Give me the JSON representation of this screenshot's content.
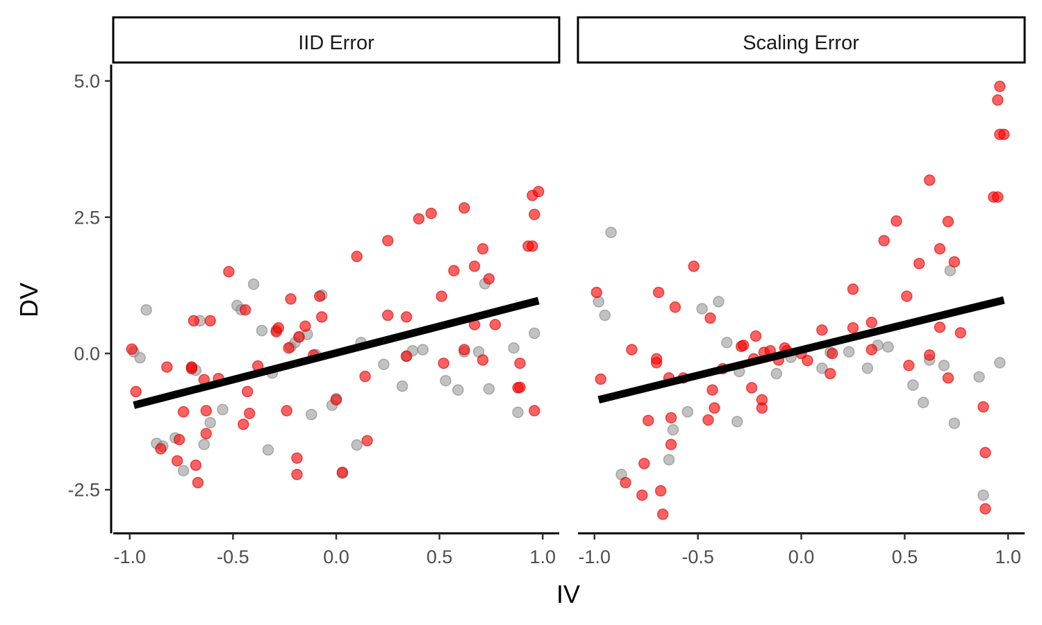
{
  "chart_data": {
    "type": "scatter",
    "xlabel": "IV",
    "ylabel": "DV",
    "xlim": [
      -1.08,
      1.08
    ],
    "ylim": [
      -3.3,
      5.3
    ],
    "x_ticks": [
      "-1.0",
      "-0.5",
      "0.0",
      "0.5",
      "1.0"
    ],
    "y_ticks": [
      "5.0",
      "2.5",
      "0.0",
      "-2.5"
    ],
    "grid": false,
    "legend": "none",
    "colors": {
      "gray": "#999999",
      "red": "#ff0000",
      "line": "#000000"
    },
    "panels": [
      {
        "name": "IID Error",
        "fit_line": {
          "x": [
            -0.98,
            0.98
          ],
          "y": [
            -0.95,
            0.97
          ]
        },
        "gray_points": {
          "x": [
            -0.98,
            -0.95,
            -0.92,
            -0.87,
            -0.84,
            -0.78,
            -0.74,
            -0.7,
            -0.68,
            -0.66,
            -0.64,
            -0.61,
            -0.55,
            -0.48,
            -0.46,
            -0.4,
            -0.36,
            -0.33,
            -0.31,
            -0.29,
            -0.22,
            -0.2,
            -0.18,
            -0.14,
            -0.12,
            -0.1,
            -0.07,
            -0.02,
            0.0,
            0.03,
            0.1,
            0.12,
            0.23,
            0.32,
            0.34,
            0.37,
            0.42,
            0.53,
            0.59,
            0.62,
            0.69,
            0.72,
            0.74,
            0.86,
            0.88,
            0.96
          ],
          "y": [
            0.03,
            -0.08,
            0.8,
            -1.65,
            -1.7,
            -1.55,
            -2.15,
            -0.25,
            -0.31,
            0.6,
            -1.67,
            -1.27,
            -1.03,
            0.88,
            0.8,
            1.27,
            0.42,
            -1.77,
            -0.36,
            0.43,
            0.12,
            0.2,
            0.31,
            0.35,
            -1.12,
            -0.02,
            1.07,
            -0.95,
            -0.83,
            -2.2,
            -1.68,
            0.2,
            -0.2,
            -0.6,
            -0.05,
            0.05,
            0.07,
            -0.5,
            -0.67,
            0.03,
            0.03,
            1.28,
            -0.65,
            0.1,
            -1.08,
            0.37
          ]
        },
        "red_points": {
          "x": [
            -0.99,
            -0.97,
            -0.85,
            -0.82,
            -0.77,
            -0.76,
            -0.74,
            -0.7,
            -0.7,
            -0.69,
            -0.68,
            -0.67,
            -0.64,
            -0.63,
            -0.63,
            -0.61,
            -0.57,
            -0.52,
            -0.45,
            -0.44,
            -0.43,
            -0.42,
            -0.38,
            -0.29,
            -0.28,
            -0.24,
            -0.23,
            -0.22,
            -0.19,
            -0.19,
            -0.18,
            -0.15,
            -0.11,
            -0.08,
            -0.07,
            0.0,
            0.03,
            0.1,
            0.14,
            0.15,
            0.25,
            0.25,
            0.34,
            0.34,
            0.4,
            0.46,
            0.51,
            0.52,
            0.57,
            0.62,
            0.62,
            0.67,
            0.67,
            0.71,
            0.71,
            0.74,
            0.77,
            0.88,
            0.89,
            0.89,
            0.93,
            0.95,
            0.95,
            0.96,
            0.96,
            0.98
          ],
          "y": [
            0.08,
            -0.7,
            -1.75,
            -0.25,
            -1.97,
            -1.58,
            -1.07,
            -0.28,
            -0.25,
            0.6,
            -2.05,
            -2.37,
            -0.48,
            -1.05,
            -1.47,
            0.6,
            -0.46,
            1.5,
            -1.3,
            0.8,
            -0.7,
            -1.1,
            -0.23,
            0.4,
            0.47,
            -1.05,
            0.1,
            1.0,
            -1.92,
            -2.22,
            0.3,
            0.5,
            -0.03,
            1.05,
            0.67,
            -0.85,
            -2.18,
            1.78,
            -0.42,
            -1.6,
            0.7,
            2.07,
            0.67,
            -0.05,
            2.47,
            2.57,
            1.05,
            -0.18,
            1.52,
            2.67,
            0.07,
            1.6,
            0.53,
            1.92,
            -0.12,
            1.37,
            0.53,
            -0.63,
            -0.18,
            -0.62,
            1.97,
            1.97,
            2.9,
            -1.05,
            2.55,
            2.97
          ]
        }
      },
      {
        "name": "Scaling Error",
        "fit_line": {
          "x": [
            -0.98,
            0.98
          ],
          "y": [
            -0.85,
            0.98
          ]
        },
        "gray_points": {
          "x": [
            -0.98,
            -0.95,
            -0.92,
            -0.87,
            -0.64,
            -0.62,
            -0.55,
            -0.48,
            -0.4,
            -0.36,
            -0.31,
            -0.3,
            -0.12,
            -0.05,
            0.1,
            0.14,
            0.23,
            0.32,
            0.37,
            0.42,
            0.54,
            0.59,
            0.62,
            0.69,
            0.72,
            0.74,
            0.86,
            0.88,
            0.96
          ],
          "y": [
            0.95,
            0.7,
            2.22,
            -2.22,
            -1.95,
            -1.4,
            -1.07,
            0.82,
            0.95,
            0.2,
            -1.25,
            -0.33,
            -0.37,
            -0.07,
            -0.27,
            0.02,
            0.03,
            -0.27,
            0.15,
            0.12,
            -0.58,
            -0.9,
            -0.12,
            -0.22,
            1.52,
            -1.28,
            -0.43,
            -2.6,
            -0.17
          ]
        },
        "red_points": {
          "x": [
            -0.99,
            -0.97,
            -0.85,
            -0.82,
            -0.77,
            -0.76,
            -0.74,
            -0.7,
            -0.7,
            -0.69,
            -0.68,
            -0.67,
            -0.64,
            -0.63,
            -0.63,
            -0.61,
            -0.57,
            -0.52,
            -0.45,
            -0.44,
            -0.43,
            -0.42,
            -0.38,
            -0.29,
            -0.28,
            -0.24,
            -0.23,
            -0.22,
            -0.19,
            -0.19,
            -0.18,
            -0.15,
            -0.11,
            -0.08,
            -0.07,
            0.0,
            0.03,
            0.1,
            0.14,
            0.15,
            0.25,
            0.25,
            0.34,
            0.34,
            0.4,
            0.46,
            0.51,
            0.52,
            0.57,
            0.62,
            0.62,
            0.67,
            0.67,
            0.71,
            0.71,
            0.74,
            0.77,
            0.88,
            0.89,
            0.89,
            0.93,
            0.95,
            0.95,
            0.96,
            0.96,
            0.98
          ],
          "y": [
            1.12,
            -0.47,
            -2.37,
            0.07,
            -2.6,
            -2.02,
            -1.23,
            -0.17,
            -0.1,
            1.12,
            -2.52,
            -2.95,
            -0.45,
            -1.18,
            -1.67,
            0.85,
            -0.45,
            1.6,
            -1.22,
            0.65,
            -0.67,
            -1.0,
            -0.28,
            0.13,
            0.15,
            -0.63,
            -0.1,
            0.32,
            -1.0,
            -0.85,
            0.02,
            0.05,
            -0.12,
            0.1,
            0.05,
            0.0,
            -0.13,
            0.43,
            -0.37,
            0.0,
            0.47,
            1.18,
            0.07,
            0.57,
            2.07,
            2.43,
            1.05,
            -0.22,
            1.65,
            3.18,
            -0.03,
            1.92,
            0.48,
            2.42,
            -0.45,
            1.68,
            0.38,
            -0.98,
            -1.82,
            -2.85,
            2.87,
            2.87,
            4.65,
            4.02,
            4.9,
            4.02
          ]
        }
      }
    ]
  }
}
